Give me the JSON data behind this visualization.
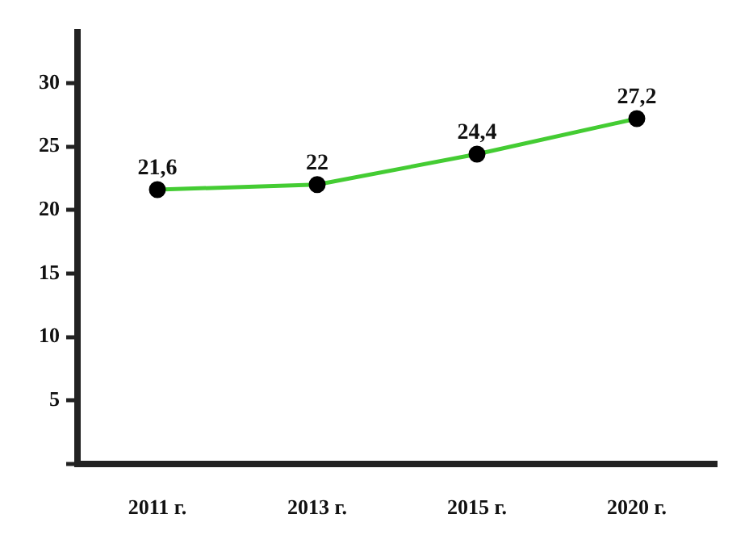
{
  "chart_data": {
    "type": "line",
    "categories": [
      "2011 г.",
      "2013 г.",
      "2015 г.",
      "2020 г."
    ],
    "series": [
      {
        "color": "#44cc33",
        "values": [
          21.6,
          22,
          24.4,
          27.2
        ],
        "value_labels": [
          "21,6",
          "22",
          "24,4",
          "27,2"
        ]
      }
    ],
    "ylim": [
      0,
      34
    ],
    "yticks": [
      {
        "value": 0,
        "label": null
      },
      5,
      10,
      15,
      20,
      25,
      30
    ],
    "marker": "circle",
    "line_style": "solid",
    "grid": false,
    "legend": false
  }
}
